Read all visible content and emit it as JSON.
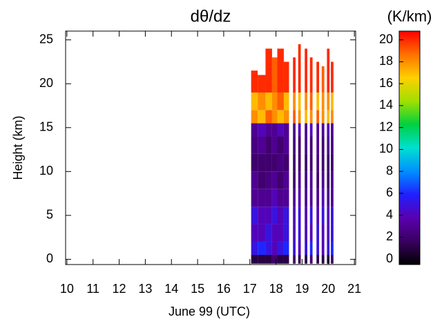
{
  "chart_data": {
    "type": "heatmap",
    "title": "dθ/dz",
    "colorbar_label": "(K/km)",
    "x_label": "June 99 (UTC)",
    "y_label": "Height (km)",
    "xlim": [
      9.95,
      21.05
    ],
    "xticks": [
      10,
      11,
      12,
      13,
      14,
      15,
      16,
      17,
      18,
      19,
      20,
      21
    ],
    "ylim": [
      -0.6,
      26
    ],
    "yticks": [
      0,
      5,
      10,
      15,
      20,
      25
    ],
    "clim": [
      -0.5,
      20.8
    ],
    "cticks": [
      0,
      2,
      4,
      6,
      8,
      10,
      12,
      14,
      16,
      18,
      20
    ],
    "colormap": [
      "#000000",
      "#3a0060",
      "#5a00b0",
      "#2020ff",
      "#0090ff",
      "#00e0d0",
      "#00d040",
      "#a0e000",
      "#ffd000",
      "#ff7000",
      "#ff0000"
    ],
    "time_ranges": [
      [
        17.05,
        17.3
      ],
      [
        17.3,
        17.6
      ],
      [
        17.6,
        17.85
      ],
      [
        17.85,
        18.05
      ],
      [
        18.05,
        18.3
      ],
      [
        18.3,
        18.5
      ],
      [
        18.65,
        18.75
      ],
      [
        18.85,
        18.95
      ],
      [
        19.1,
        19.2
      ],
      [
        19.3,
        19.4
      ],
      [
        19.55,
        19.65
      ],
      [
        19.75,
        19.85
      ],
      [
        19.95,
        20.05
      ],
      [
        20.1,
        20.2
      ]
    ],
    "height_bins": [
      -0.5,
      0.5,
      2,
      4,
      6,
      8,
      10,
      12,
      14,
      15.5,
      17,
      19
    ],
    "tops": [
      21.5,
      21,
      24,
      23,
      24,
      22.5,
      23,
      24.5,
      24,
      23,
      22.5,
      22,
      24,
      22.5
    ],
    "values": [
      [
        1,
        5,
        4,
        5,
        3,
        3,
        2,
        2.5,
        3,
        18,
        17,
        20
      ],
      [
        1,
        6,
        4,
        4,
        3,
        2,
        2,
        3,
        4,
        17,
        18,
        20
      ],
      [
        1,
        5,
        5,
        4,
        3,
        2.5,
        2,
        2,
        3,
        19,
        17,
        20
      ],
      [
        2,
        4,
        4,
        5,
        4,
        3,
        2,
        3,
        3,
        18,
        18,
        19
      ],
      [
        1,
        5,
        4,
        4,
        3,
        2,
        2.5,
        2,
        4,
        17,
        19,
        20
      ],
      [
        1,
        6,
        5,
        5,
        3,
        3,
        2,
        3,
        3,
        18,
        17,
        20
      ],
      [
        2,
        5,
        4,
        4,
        3,
        2,
        2,
        2.5,
        3,
        19,
        18,
        20
      ],
      [
        1,
        4,
        5,
        5,
        4,
        3,
        2,
        2,
        4,
        18,
        17,
        20
      ],
      [
        1,
        5,
        4,
        4,
        3,
        2.5,
        2,
        3,
        3,
        17,
        18,
        20
      ],
      [
        2,
        6,
        4,
        5,
        3,
        3,
        2,
        2,
        4,
        18,
        19,
        20
      ],
      [
        1,
        5,
        5,
        4,
        3,
        2,
        2.5,
        3,
        3,
        19,
        17,
        20
      ],
      [
        1,
        4,
        4,
        5,
        4,
        3,
        2,
        2,
        3,
        18,
        18,
        19
      ],
      [
        1,
        5,
        4,
        4,
        3,
        2,
        2,
        3,
        4,
        17,
        18,
        20
      ],
      [
        2,
        6,
        5,
        5,
        3,
        3,
        2,
        2.5,
        3,
        18,
        17,
        20
      ]
    ]
  }
}
